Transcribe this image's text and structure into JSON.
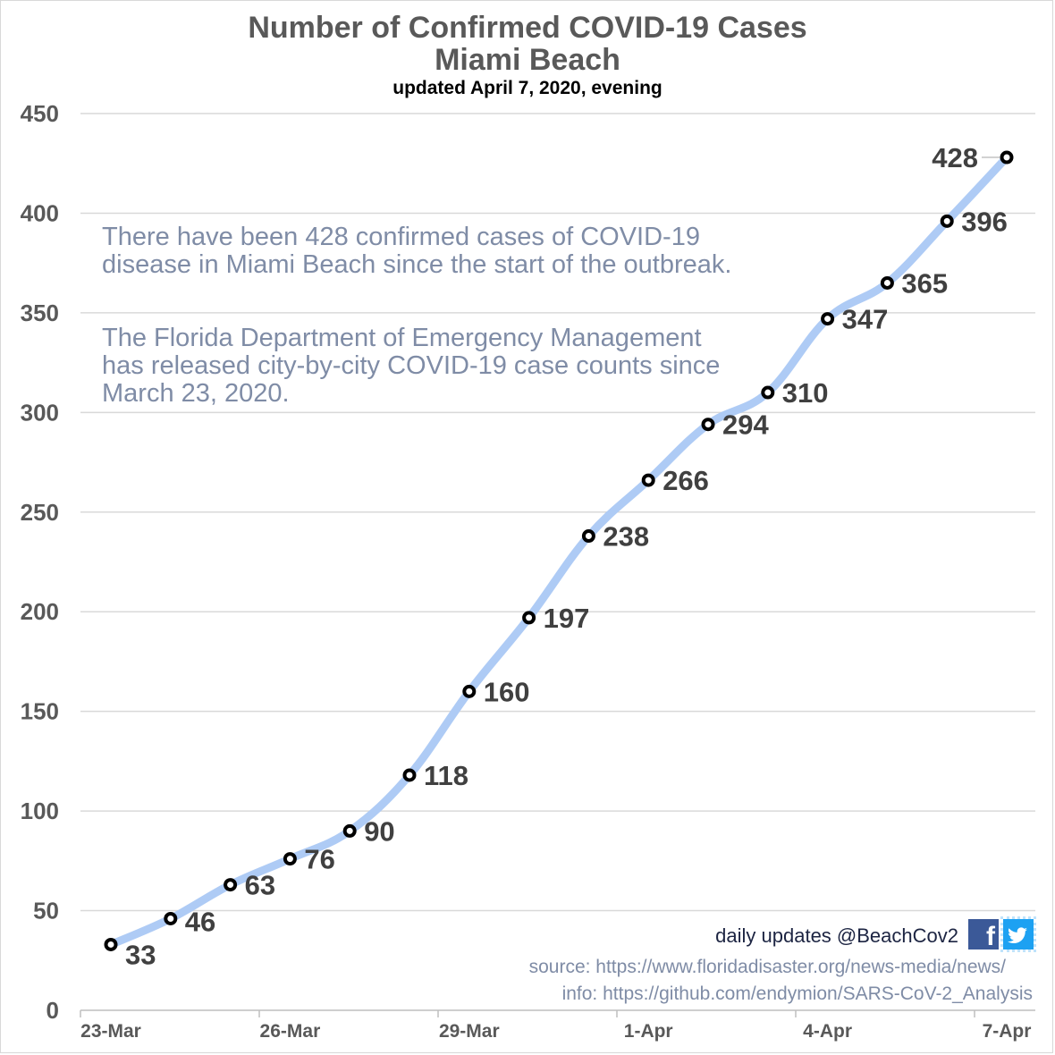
{
  "chart_data": {
    "type": "line",
    "title": "Number of Confirmed COVID-19 Cases",
    "subtitle": "Miami Beach",
    "update_note": "updated April 7, 2020, evening",
    "x": [
      "23-Mar",
      "24-Mar",
      "25-Mar",
      "26-Mar",
      "27-Mar",
      "28-Mar",
      "29-Mar",
      "30-Mar",
      "31-Mar",
      "1-Apr",
      "2-Apr",
      "3-Apr",
      "4-Apr",
      "5-Apr",
      "6-Apr",
      "7-Apr"
    ],
    "series": [
      {
        "values": [
          33,
          46,
          63,
          76,
          90,
          118,
          160,
          197,
          238,
          266,
          294,
          310,
          347,
          365,
          396,
          428
        ]
      }
    ],
    "x_tick_labels": [
      "23-Mar",
      "26-Mar",
      "29-Mar",
      "1-Apr",
      "4-Apr",
      "7-Apr"
    ],
    "y_ticks": [
      0,
      50,
      100,
      150,
      200,
      250,
      300,
      350,
      400,
      450
    ],
    "ylim": [
      0,
      450
    ],
    "grid": true,
    "line_color": "#aecbf5",
    "marker_color": "#000000"
  },
  "annotations": {
    "note1": "There have been 428 confirmed cases of COVID-19 disease in Miami Beach since the start of the outbreak.",
    "note2": "The Florida Department of Emergency Management has released city-by-city COVID-19 case counts since March 23, 2020."
  },
  "footer": {
    "credit": "daily updates @BeachCov2",
    "source": "source: https://www.floridadisaster.org/news-media/news/",
    "info": "info: https://github.com/endymion/SARS-CoV-2_Analysis",
    "icons": [
      "facebook-icon",
      "twitter-icon"
    ]
  }
}
